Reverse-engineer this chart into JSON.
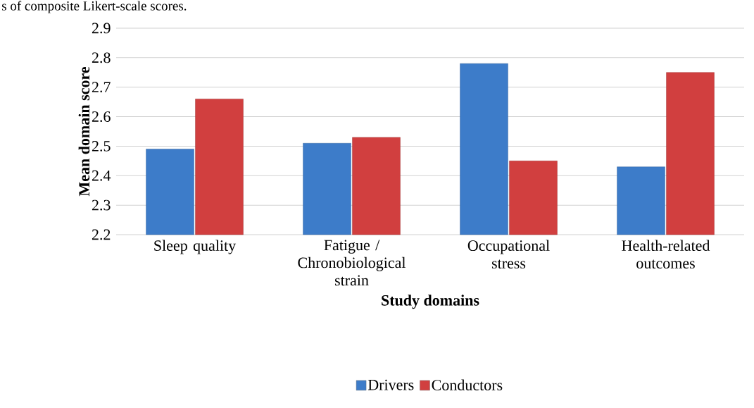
{
  "chart_data": {
    "type": "bar",
    "annotations": [
      "s of composite Likert-scale scores."
    ],
    "xlabel": "Study domains",
    "ylabel": "Mean domain score",
    "categories": [
      "Sleep quality",
      "Fatigue / Chronobiological strain",
      "Occupational stress",
      "Health-related outcomes"
    ],
    "series": [
      {
        "name": "Drivers",
        "color": "#3d7cc9",
        "values": [
          2.49,
          2.51,
          2.78,
          2.43
        ]
      },
      {
        "name": "Conductors",
        "color": "#d13f3f",
        "values": [
          2.66,
          2.53,
          2.45,
          2.75
        ]
      }
    ],
    "ylim": [
      2.2,
      2.9
    ],
    "yticks": [
      2.2,
      2.3,
      2.4,
      2.5,
      2.6,
      2.7,
      2.8,
      2.9
    ],
    "grid": "y",
    "legend": "bottom"
  }
}
